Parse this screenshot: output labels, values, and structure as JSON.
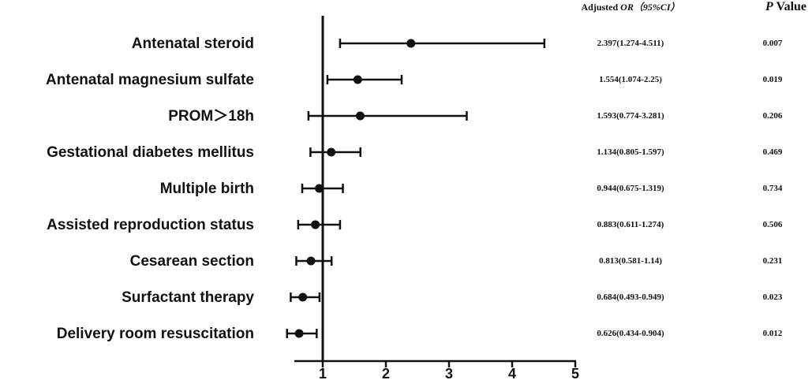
{
  "header": {
    "or_prefix": "Adjusted ",
    "or_italic": "OR",
    "or_ci": "（95%CI）",
    "p_italic": "P",
    "p_suffix": " Value"
  },
  "chart_data": {
    "type": "forest",
    "title": "",
    "xlabel": "",
    "ylabel": "",
    "xlim": [
      0.55,
      5
    ],
    "reference_line": 1,
    "x_ticks": [
      1,
      2,
      3,
      4,
      5
    ],
    "x_tick_labels": [
      "1",
      "2",
      "3",
      "4",
      "5"
    ],
    "rows": [
      {
        "label": "Antenatal steroid",
        "or": 2.397,
        "lower": 1.274,
        "upper": 4.511,
        "or_text": "2.397(1.274-4.511)",
        "p_text": "0.007"
      },
      {
        "label": "Antenatal magnesium sulfate",
        "or": 1.554,
        "lower": 1.074,
        "upper": 2.25,
        "or_text": "1.554(1.074-2.25)",
        "p_text": "0.019"
      },
      {
        "label": "PROM＞18h",
        "or": 1.593,
        "lower": 0.774,
        "upper": 3.281,
        "or_text": "1.593(0.774-3.281)",
        "p_text": "0.206"
      },
      {
        "label": "Gestational diabetes mellitus",
        "or": 1.134,
        "lower": 0.805,
        "upper": 1.597,
        "or_text": "1.134(0.805-1.597)",
        "p_text": "0.469"
      },
      {
        "label": "Multiple birth",
        "or": 0.944,
        "lower": 0.675,
        "upper": 1.319,
        "or_text": "0.944(0.675-1.319)",
        "p_text": "0.734"
      },
      {
        "label": "Assisted reproduction status",
        "or": 0.883,
        "lower": 0.611,
        "upper": 1.274,
        "or_text": "0.883(0.611-1.274)",
        "p_text": "0.506"
      },
      {
        "label": "Cesarean section",
        "or": 0.813,
        "lower": 0.581,
        "upper": 1.14,
        "or_text": "0.813(0.581-1.14)",
        "p_text": "0.231"
      },
      {
        "label": "Surfactant therapy",
        "or": 0.684,
        "lower": 0.493,
        "upper": 0.949,
        "or_text": "0.684(0.493-0.949)",
        "p_text": "0.023"
      },
      {
        "label": "Delivery room resuscitation",
        "or": 0.626,
        "lower": 0.434,
        "upper": 0.904,
        "or_text": "0.626(0.434-0.904)",
        "p_text": "0.012"
      }
    ],
    "colors": {
      "ink": "#111111",
      "background": "#ffffff"
    }
  }
}
